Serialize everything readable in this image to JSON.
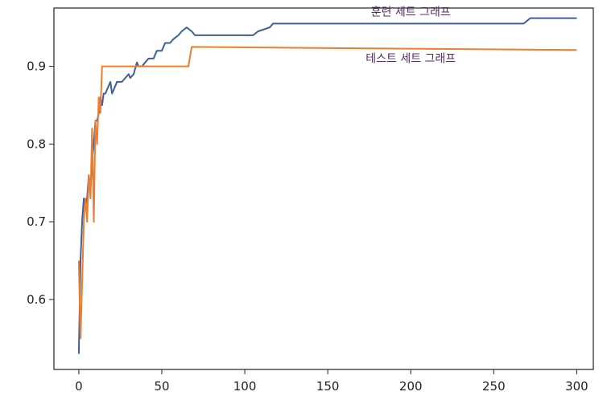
{
  "chart_data": {
    "type": "line",
    "title": "",
    "xlabel": "",
    "ylabel": "",
    "xlim": [
      -15,
      310
    ],
    "ylim": [
      0.51,
      0.975
    ],
    "xticks": [
      0,
      50,
      100,
      150,
      200,
      250,
      300
    ],
    "yticks": [
      0.6,
      0.7,
      0.8,
      0.9
    ],
    "grid": false,
    "legend": "none",
    "series": [
      {
        "name": "훈련 세트 그래프",
        "color": "#3d5f9e",
        "x": [
          0,
          1,
          2,
          3,
          4,
          5,
          6,
          7,
          8,
          9,
          10,
          11,
          12,
          13,
          14,
          15,
          16,
          18,
          19,
          20,
          22,
          23,
          25,
          26,
          28,
          30,
          31,
          33,
          35,
          36,
          38,
          40,
          42,
          45,
          47,
          50,
          52,
          55,
          57,
          60,
          62,
          65,
          68,
          70,
          105,
          108,
          115,
          117,
          120,
          268,
          272,
          300
        ],
        "y": [
          0.53,
          0.65,
          0.7,
          0.73,
          0.72,
          0.73,
          0.76,
          0.74,
          0.78,
          0.8,
          0.83,
          0.83,
          0.84,
          0.86,
          0.85,
          0.865,
          0.865,
          0.875,
          0.88,
          0.865,
          0.875,
          0.88,
          0.88,
          0.88,
          0.885,
          0.89,
          0.885,
          0.89,
          0.905,
          0.9,
          0.9,
          0.905,
          0.91,
          0.91,
          0.92,
          0.92,
          0.93,
          0.93,
          0.935,
          0.94,
          0.945,
          0.95,
          0.945,
          0.94,
          0.94,
          0.945,
          0.95,
          0.955,
          0.955,
          0.955,
          0.962,
          0.962
        ]
      },
      {
        "name": "테스트 세트 그래프",
        "color": "#f07d2a",
        "x": [
          0,
          1,
          2,
          3,
          4,
          5,
          6,
          7,
          8,
          9,
          10,
          11,
          12,
          13,
          14,
          15,
          66,
          68,
          300
        ],
        "y": [
          0.65,
          0.55,
          0.62,
          0.7,
          0.73,
          0.7,
          0.76,
          0.73,
          0.82,
          0.7,
          0.83,
          0.8,
          0.86,
          0.84,
          0.9,
          0.9,
          0.9,
          0.925,
          0.921
        ]
      }
    ],
    "annotations": [
      {
        "text": "훈련 세트 그래프",
        "x": 200,
        "y": 0.965
      },
      {
        "text": "테스트 세트 그래프",
        "x": 200,
        "y": 0.905
      }
    ]
  }
}
